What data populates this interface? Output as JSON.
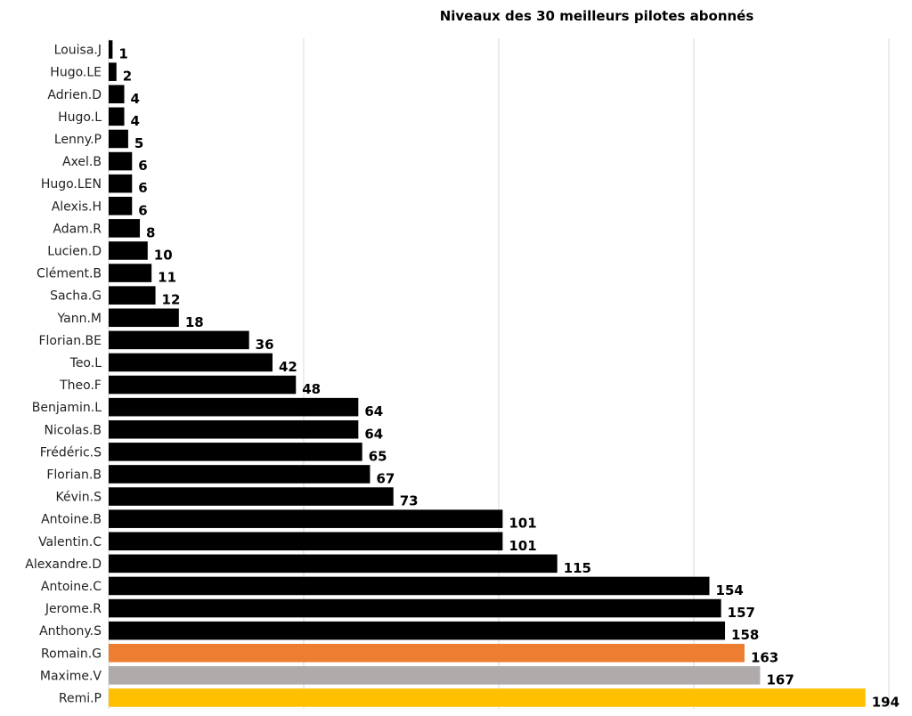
{
  "chart_data": {
    "type": "bar",
    "orientation": "horizontal",
    "title": "Niveaux des 30 meilleurs pilotes abonnés",
    "xlabel": "",
    "ylabel": "",
    "xlim": [
      0,
      200
    ],
    "grid": true,
    "gridlines_at": [
      50,
      100,
      150,
      200
    ],
    "tick_labels_shown": false,
    "categories": [
      "Louisa.J",
      "Hugo.LE",
      "Adrien.D",
      "Hugo.L",
      "Lenny.P",
      "Axel.B",
      "Hugo.LEN",
      "Alexis.H",
      "Adam.R",
      "Lucien.D",
      "Clément.B",
      "Sacha.G",
      "Yann.M",
      "Florian.BE",
      "Teo.L",
      "Theo.F",
      "Benjamin.L",
      "Nicolas.B",
      "Frédéric.S",
      "Florian.B",
      "Kévin.S",
      "Antoine.B",
      "Valentin.C",
      "Alexandre.D",
      "Antoine.C",
      "Jerome.R",
      "Anthony.S",
      "Romain.G",
      "Maxime.V",
      "Remi.P"
    ],
    "values": [
      1,
      2,
      4,
      4,
      5,
      6,
      6,
      6,
      8,
      10,
      11,
      12,
      18,
      36,
      42,
      48,
      64,
      64,
      65,
      67,
      73,
      101,
      101,
      115,
      154,
      157,
      158,
      163,
      167,
      194
    ],
    "colors": {
      "default": "#000000",
      "Romain.G": "#ED7D31",
      "Maxime.V": "#AFABAB",
      "Remi.P": "#FFC000"
    },
    "gridline_color": "#D9D9D9"
  }
}
